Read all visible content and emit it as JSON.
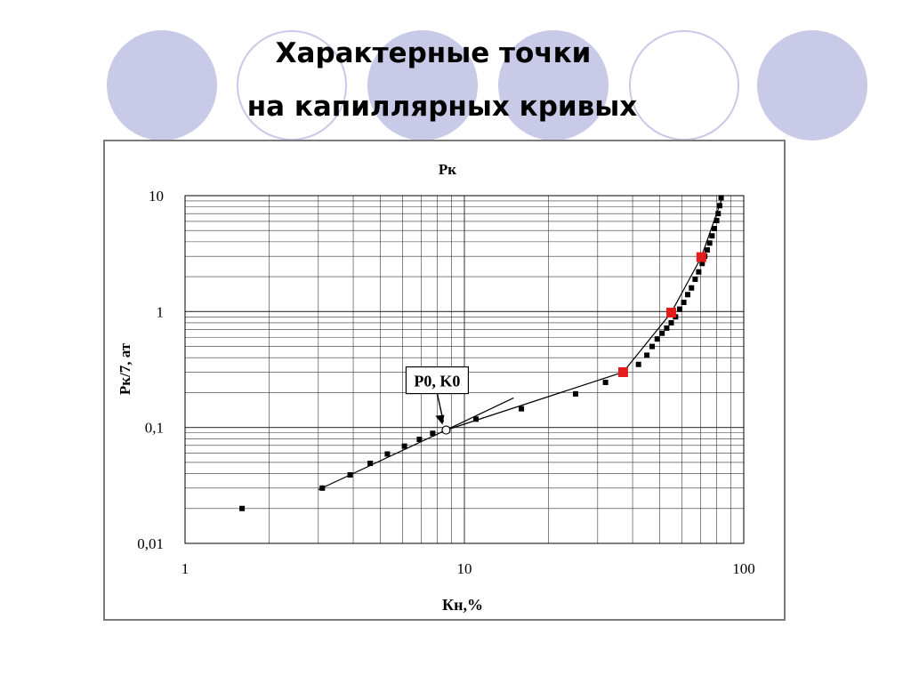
{
  "slide": {
    "title_line1": "Характерные точки",
    "title_line2": "на капиллярных кривых",
    "decor_color": "#c9c9e8"
  },
  "chart_data": {
    "type": "scatter",
    "title": "Pк",
    "xlabel": "Кн,%",
    "ylabel": "Pк/7, ат",
    "x_scale": "log",
    "y_scale": "log",
    "xlim": [
      1,
      100
    ],
    "ylim": [
      0.01,
      10
    ],
    "x_ticks": [
      "1",
      "10",
      "100"
    ],
    "y_ticks": [
      "0,01",
      "0,1",
      "1",
      "10"
    ],
    "grid": true,
    "annotation": {
      "text": "P0, K0",
      "x": 8.6,
      "y": 0.095
    },
    "series": [
      {
        "color": "#000000",
        "x": [
          1.6,
          3.1,
          3.9,
          4.6,
          5.3,
          6.1,
          6.9,
          7.7,
          11,
          16,
          25,
          32,
          37,
          42,
          45,
          47,
          49,
          51,
          53,
          55,
          57,
          59,
          61,
          63,
          65,
          67,
          69,
          71,
          72.5,
          74,
          75.5,
          77,
          78.5,
          80,
          81,
          82,
          83
        ],
        "y": [
          0.02,
          0.03,
          0.039,
          0.049,
          0.059,
          0.069,
          0.079,
          0.089,
          0.118,
          0.145,
          0.195,
          0.245,
          0.3,
          0.35,
          0.42,
          0.5,
          0.58,
          0.65,
          0.72,
          0.8,
          0.9,
          1.05,
          1.2,
          1.4,
          1.6,
          1.9,
          2.2,
          2.6,
          3.0,
          3.4,
          3.9,
          4.5,
          5.2,
          6.1,
          7.0,
          8.2,
          9.6
        ]
      },
      {
        "color": "#e51c1c",
        "x": [
          37,
          55,
          70.5
        ],
        "y": [
          0.3,
          0.98,
          2.95
        ]
      }
    ],
    "lines": [
      {
        "color": "#000000",
        "x": [
          3.0,
          8.6,
          15
        ],
        "y": [
          0.029,
          0.095,
          0.18
        ]
      },
      {
        "color": "#000000",
        "x": [
          8.6,
          37,
          55,
          70.5,
          84
        ],
        "y": [
          0.095,
          0.3,
          0.98,
          2.95,
          9.8
        ]
      }
    ]
  }
}
